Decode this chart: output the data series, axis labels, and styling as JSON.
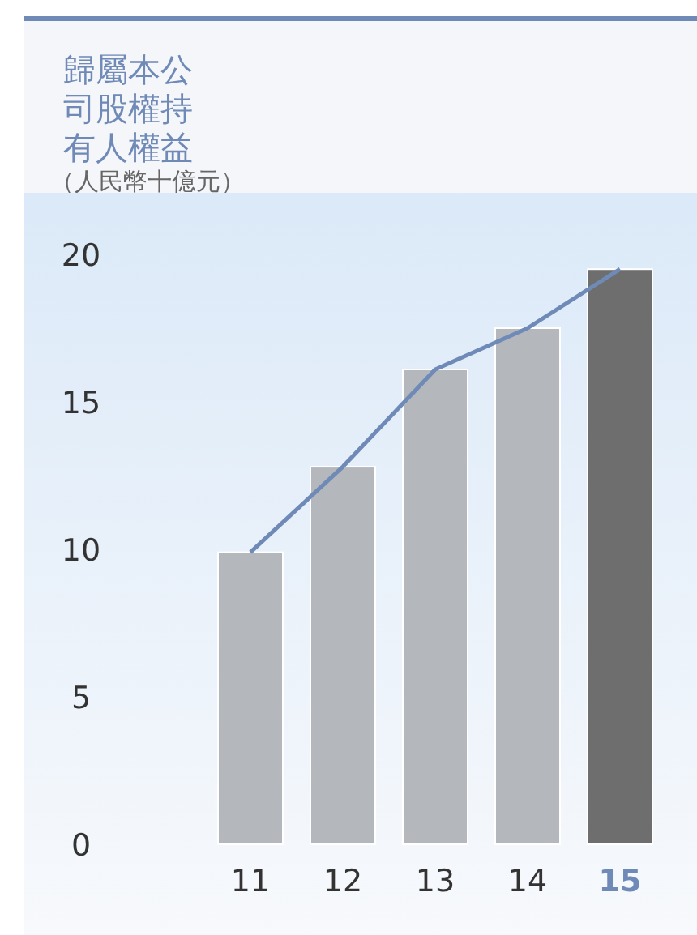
{
  "chart_data": {
    "type": "bar",
    "title": "歸屬本公司股權持有人權益",
    "subtitle": "（人民幣十億元）",
    "categories": [
      "11",
      "12",
      "13",
      "14",
      "15"
    ],
    "series": [
      {
        "colors": [
          "#b4b8bc",
          "#b4b8bc",
          "#b4b8bc",
          "#b4b8bc",
          "#6e6e6e"
        ],
        "values": [
          9.9,
          12.8,
          16.1,
          17.5,
          19.5
        ]
      },
      {
        "type": "line",
        "color": "#6f8ab7",
        "values": [
          9.9,
          12.8,
          16.1,
          17.5,
          19.5
        ]
      }
    ],
    "ylim": [
      0,
      20
    ],
    "yticks": [
      0,
      5,
      10,
      15,
      20
    ]
  }
}
